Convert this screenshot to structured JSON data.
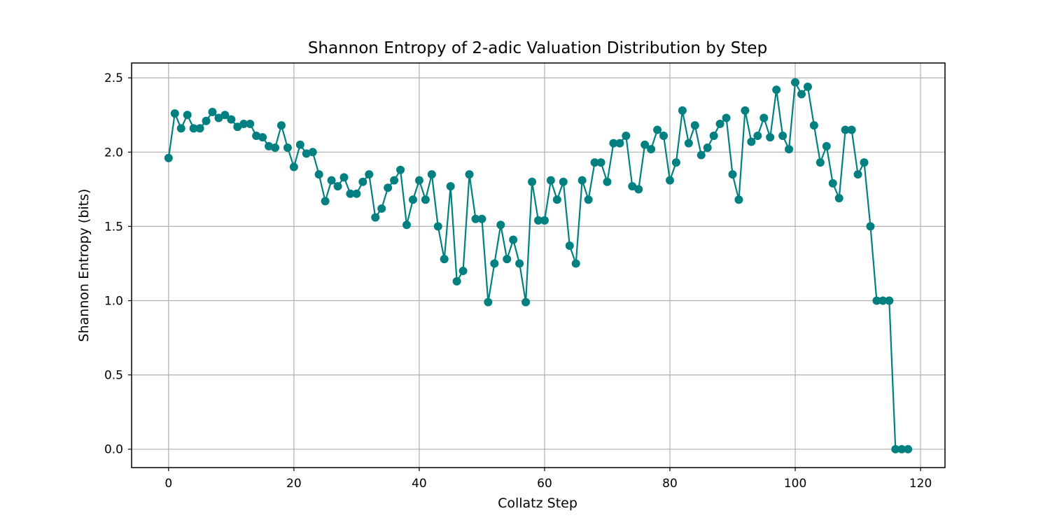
{
  "chart_data": {
    "type": "line",
    "title": "Shannon Entropy of 2-adic Valuation Distribution by Step",
    "xlabel": "Collatz Step",
    "ylabel": "Shannon Entropy (bits)",
    "xlim": [
      -5.9,
      123.9
    ],
    "ylim": [
      -0.124,
      2.6
    ],
    "xticks": [
      0,
      20,
      40,
      60,
      80,
      100,
      120
    ],
    "yticks": [
      0.0,
      0.5,
      1.0,
      1.5,
      2.0,
      2.5
    ],
    "xtick_labels": [
      "0",
      "20",
      "40",
      "60",
      "80",
      "100",
      "120"
    ],
    "ytick_labels": [
      "0.0",
      "0.5",
      "1.0",
      "1.5",
      "2.0",
      "2.5"
    ],
    "grid": true,
    "legend": "none",
    "color": "#008080",
    "series": [
      {
        "marker": "circle",
        "x": [
          0,
          1,
          2,
          3,
          4,
          5,
          6,
          7,
          8,
          9,
          10,
          11,
          12,
          13,
          14,
          15,
          16,
          17,
          18,
          19,
          20,
          21,
          22,
          23,
          24,
          25,
          26,
          27,
          28,
          29,
          30,
          31,
          32,
          33,
          34,
          35,
          36,
          37,
          38,
          39,
          40,
          41,
          42,
          43,
          44,
          45,
          46,
          47,
          48,
          49,
          50,
          51,
          52,
          53,
          54,
          55,
          56,
          57,
          58,
          59,
          60,
          61,
          62,
          63,
          64,
          65,
          66,
          67,
          68,
          69,
          70,
          71,
          72,
          73,
          74,
          75,
          76,
          77,
          78,
          79,
          80,
          81,
          82,
          83,
          84,
          85,
          86,
          87,
          88,
          89,
          90,
          91,
          92,
          93,
          94,
          95,
          96,
          97,
          98,
          99,
          100,
          101,
          102,
          103,
          104,
          105,
          106,
          107,
          108,
          109,
          110,
          111,
          112,
          113,
          114,
          115,
          116,
          117,
          118
        ],
        "y": [
          1.96,
          2.26,
          2.16,
          2.25,
          2.16,
          2.16,
          2.21,
          2.27,
          2.23,
          2.25,
          2.22,
          2.17,
          2.19,
          2.19,
          2.11,
          2.1,
          2.04,
          2.03,
          2.18,
          2.03,
          1.9,
          2.05,
          1.99,
          2.0,
          1.85,
          1.67,
          1.81,
          1.77,
          1.83,
          1.72,
          1.72,
          1.8,
          1.85,
          1.56,
          1.62,
          1.76,
          1.81,
          1.88,
          1.51,
          1.68,
          1.81,
          1.68,
          1.85,
          1.5,
          1.28,
          1.77,
          1.13,
          1.2,
          1.85,
          1.55,
          1.55,
          0.99,
          1.25,
          1.51,
          1.28,
          1.41,
          1.25,
          0.99,
          1.8,
          1.54,
          1.54,
          1.81,
          1.68,
          1.8,
          1.37,
          1.25,
          1.81,
          1.68,
          1.93,
          1.93,
          1.8,
          2.06,
          2.06,
          2.11,
          1.77,
          1.75,
          2.05,
          2.02,
          2.15,
          2.11,
          1.81,
          1.93,
          2.28,
          2.06,
          2.18,
          1.98,
          2.03,
          2.11,
          2.19,
          2.23,
          1.85,
          1.68,
          2.28,
          2.07,
          2.11,
          2.23,
          2.1,
          2.42,
          2.11,
          2.02,
          2.47,
          2.39,
          2.44,
          2.18,
          1.93,
          2.04,
          1.79,
          1.69,
          2.15,
          2.15,
          1.85,
          1.93,
          1.5,
          1.0,
          1.0,
          1.0,
          0.0,
          0.0,
          0.0
        ]
      }
    ]
  }
}
